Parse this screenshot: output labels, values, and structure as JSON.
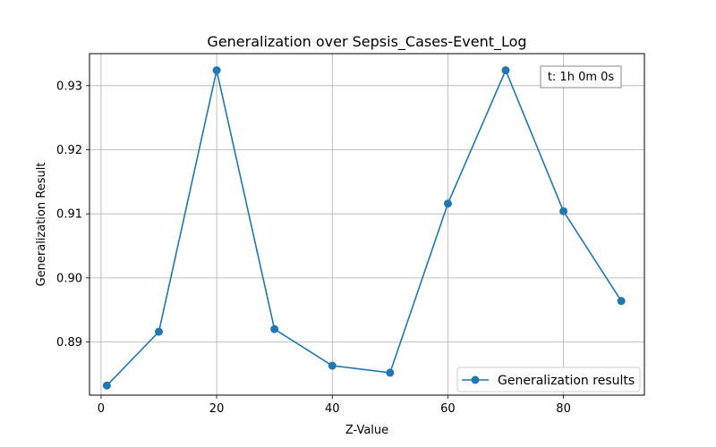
{
  "chart_data": {
    "type": "line",
    "title": "Generalization over Sepsis_Cases-Event_Log",
    "xlabel": "Z-Value",
    "ylabel": "Generalization Result",
    "xlim": [
      -2,
      94
    ],
    "ylim": [
      0.8817,
      0.935
    ],
    "x_ticks": [
      0,
      20,
      40,
      60,
      80
    ],
    "y_ticks": [
      0.89,
      0.9,
      0.91,
      0.92,
      0.93
    ],
    "x_tick_labels": [
      "0",
      "20",
      "40",
      "60",
      "80"
    ],
    "y_tick_labels": [
      "0.89",
      "0.90",
      "0.91",
      "0.92",
      "0.93"
    ],
    "grid": true,
    "legend_position": "lower-right",
    "series": [
      {
        "name": "Generalization results",
        "color": "#1f77b4",
        "x": [
          1,
          10,
          20,
          30,
          40,
          50,
          60,
          70,
          80,
          90
        ],
        "y": [
          0.8832,
          0.8916,
          0.9324,
          0.892,
          0.8863,
          0.8852,
          0.9116,
          0.9324,
          0.9104,
          0.8964
        ]
      }
    ],
    "annotation": "t: 1h 0m 0s"
  }
}
